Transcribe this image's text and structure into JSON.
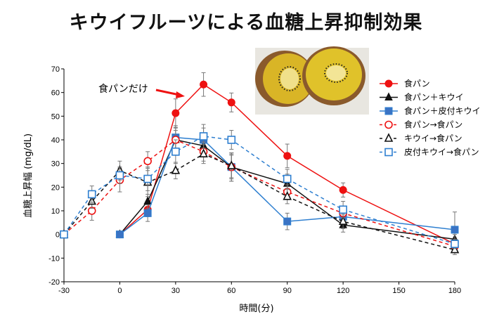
{
  "title": "キウイフルーツによる血糖上昇抑制効果",
  "chart_data": {
    "type": "line",
    "title": "キウイフルーツによる血糖上昇抑制効果",
    "xlabel": "時間(分)",
    "ylabel": "血糖上昇幅 (mg/dL)",
    "xlim": [
      -30,
      180
    ],
    "ylim": [
      -20,
      70
    ],
    "xticks": [
      -30,
      0,
      30,
      60,
      90,
      120,
      150,
      180
    ],
    "yticks": [
      -20,
      -10,
      0,
      10,
      20,
      30,
      40,
      50,
      60,
      70
    ],
    "grid": false,
    "legend_position": "right",
    "annotation": {
      "text": "食パンだけ",
      "points_to": "食パン",
      "color": "#ee1111"
    },
    "series": [
      {
        "name": "食パン",
        "color": "#ee1111",
        "dashed": false,
        "marker": "circle-filled",
        "x": [
          0,
          15,
          30,
          45,
          60,
          90,
          120,
          180
        ],
        "y": [
          0,
          10.5,
          51.3,
          63.4,
          55.8,
          33.2,
          18.8,
          -4
        ],
        "err": [
          0,
          3,
          6,
          5,
          4,
          5,
          3,
          2
        ]
      },
      {
        "name": "食パン＋キウイ",
        "color": "#111111",
        "dashed": false,
        "marker": "triangle-filled",
        "x": [
          0,
          15,
          30,
          45,
          60,
          90,
          120,
          180
        ],
        "y": [
          0,
          14,
          40,
          37.5,
          28.5,
          21.5,
          4,
          -2
        ],
        "err": [
          0,
          3,
          4,
          3,
          6,
          4,
          3,
          2
        ]
      },
      {
        "name": "食パン＋皮付キウイ",
        "color": "#2e7fd0",
        "dashed": false,
        "marker": "square-filled",
        "x": [
          0,
          15,
          30,
          45,
          60,
          90,
          120,
          180
        ],
        "y": [
          0,
          9,
          41,
          40,
          28.5,
          5.5,
          7.5,
          2
        ],
        "err": [
          0,
          3.5,
          5,
          5,
          6,
          3.5,
          3,
          7.5
        ]
      },
      {
        "name": "食パン→食パン",
        "color": "#ee1111",
        "dashed": true,
        "marker": "circle-open",
        "x": [
          -30,
          -15,
          0,
          15,
          30,
          45,
          60,
          90,
          120,
          180
        ],
        "y": [
          0,
          10,
          23,
          31,
          40,
          35,
          28.5,
          18,
          9,
          -5
        ],
        "err": [
          0,
          4,
          5,
          4,
          5,
          4,
          5,
          3,
          3,
          2
        ]
      },
      {
        "name": "キウイ→食パン",
        "color": "#111111",
        "dashed": true,
        "marker": "triangle-open",
        "x": [
          -30,
          -15,
          0,
          15,
          30,
          45,
          60,
          90,
          120,
          180
        ],
        "y": [
          0,
          14,
          27,
          22,
          27,
          34,
          29,
          16,
          5.5,
          -6.5
        ],
        "err": [
          0,
          3,
          4,
          6,
          3.5,
          4,
          5,
          3,
          3,
          2
        ]
      },
      {
        "name": "皮付キウイ→食パン",
        "color": "#2e7fd0",
        "dashed": true,
        "marker": "square-open",
        "x": [
          -30,
          -15,
          0,
          15,
          30,
          45,
          60,
          90,
          120,
          180
        ],
        "y": [
          0,
          17,
          25,
          23.5,
          35,
          41.5,
          40,
          23.5,
          10.5,
          -4
        ],
        "err": [
          0,
          3.5,
          3.5,
          5,
          5,
          5,
          4,
          4,
          3.5,
          2
        ]
      }
    ]
  }
}
